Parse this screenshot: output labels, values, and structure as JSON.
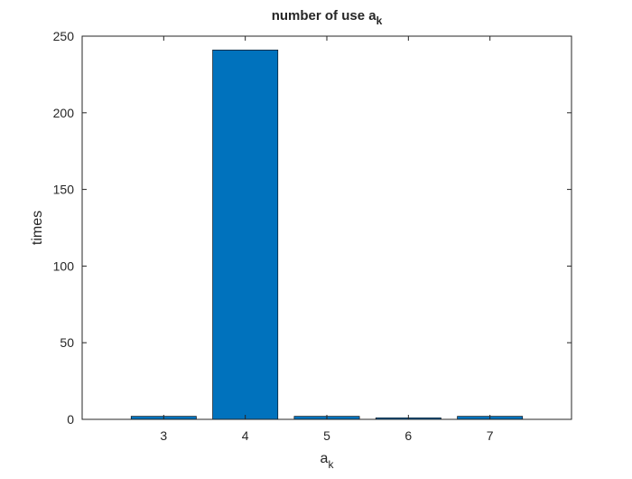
{
  "chart_data": {
    "type": "bar",
    "title": "number of use a",
    "title_subscript": "k",
    "xlabel": "a",
    "xlabel_subscript": "k",
    "ylabel": "times",
    "categories": [
      3,
      4,
      5,
      6,
      7
    ],
    "category_labels": [
      "3",
      "4",
      "5",
      "6",
      "7"
    ],
    "values": [
      2,
      241,
      2,
      1,
      2
    ],
    "xlim": [
      2,
      8
    ],
    "ylim": [
      0,
      250
    ],
    "yticks": [
      0,
      50,
      100,
      150,
      200,
      250
    ],
    "ytick_labels": [
      "0",
      "50",
      "100",
      "150",
      "200",
      "250"
    ],
    "bar_color": "#0072BD",
    "bar_edge_color": "#000000",
    "grid": false,
    "box": true
  }
}
